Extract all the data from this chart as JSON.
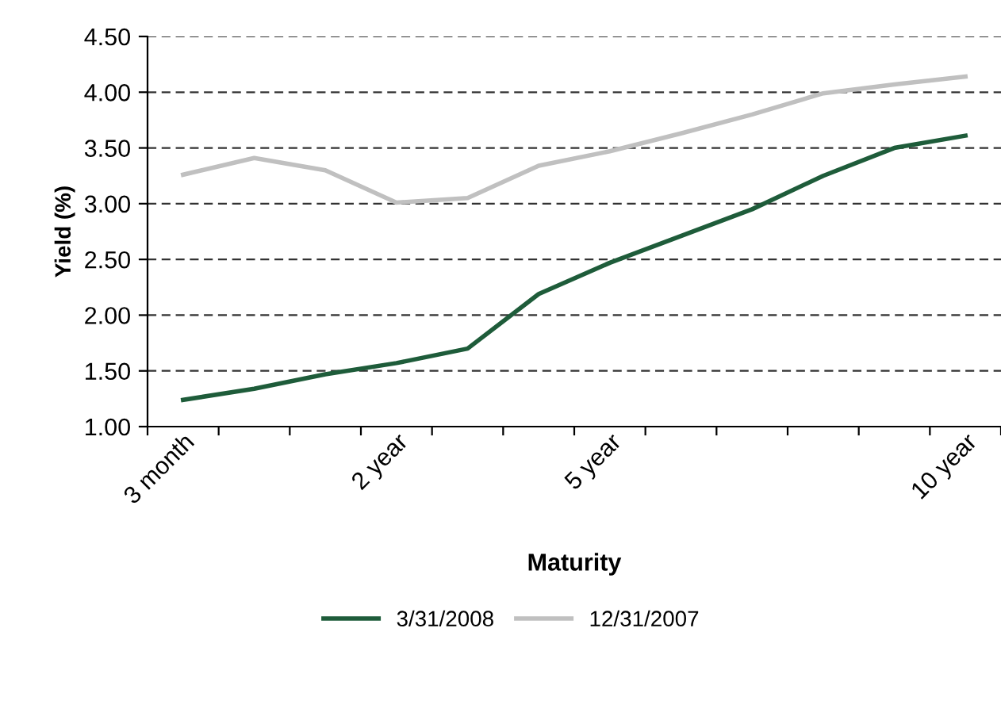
{
  "chart_data": {
    "type": "line",
    "xlabel": "Maturity",
    "ylabel": "Yield (%)",
    "categories": [
      "3 month",
      null,
      null,
      "2 year",
      null,
      null,
      "5 year",
      null,
      null,
      null,
      null,
      "10 year"
    ],
    "series": [
      {
        "name": "3/31/2008",
        "color": "#1e5c3a",
        "values": [
          1.24,
          1.34,
          1.47,
          1.57,
          1.7,
          2.19,
          2.47,
          2.71,
          2.95,
          3.25,
          3.5,
          3.61
        ]
      },
      {
        "name": "12/31/2007",
        "color": "#c0c0c0",
        "values": [
          3.26,
          3.41,
          3.3,
          3.01,
          3.05,
          3.34,
          3.47,
          3.63,
          3.8,
          3.99,
          4.07,
          4.14
        ]
      }
    ],
    "ylim": [
      1.0,
      4.5
    ],
    "yticks": [
      {
        "value": 1.0,
        "label": "1.00"
      },
      {
        "value": 1.5,
        "label": "1.50"
      },
      {
        "value": 2.0,
        "label": "2.00"
      },
      {
        "value": 2.5,
        "label": "2.50"
      },
      {
        "value": 3.0,
        "label": "3.00"
      },
      {
        "value": 3.5,
        "label": "3.50"
      },
      {
        "value": 4.0,
        "label": "4.00"
      },
      {
        "value": 4.5,
        "label": "4.50"
      }
    ],
    "grid": "y",
    "legend": "bottom",
    "marker": "none",
    "line_style": "solid"
  }
}
